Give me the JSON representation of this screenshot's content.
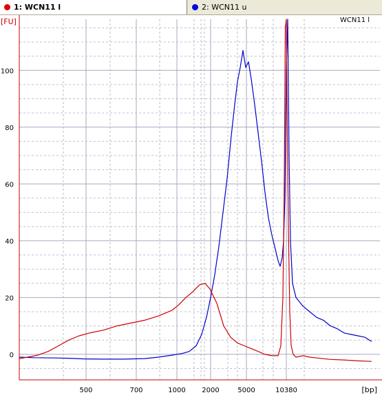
{
  "tabs": [
    {
      "label": "1: WCN11 l",
      "color": "#e00000",
      "active": true
    },
    {
      "label": "2: WCN11 u",
      "color": "#0000e0",
      "active": false
    }
  ],
  "chart_data": {
    "type": "line",
    "title": "WCN11 l",
    "xlabel": "[bp]",
    "ylabel": "[FU]",
    "ylim": [
      -9,
      118
    ],
    "y_ticks": [
      0,
      20,
      40,
      60,
      80,
      100
    ],
    "x_tick_labels": [
      "500",
      "700",
      "1000",
      "2000",
      "5000",
      "10380"
    ],
    "grid": true,
    "series": [
      {
        "name": "WCN11 l",
        "color": "#cc0000",
        "points": [
          [
            28,
            -1.5
          ],
          [
            40,
            -1
          ],
          [
            55,
            -0.3
          ],
          [
            70,
            1
          ],
          [
            85,
            3
          ],
          [
            100,
            5
          ],
          [
            115,
            6.5
          ],
          [
            130,
            7.5
          ],
          [
            150,
            8.5
          ],
          [
            170,
            10
          ],
          [
            190,
            11
          ],
          [
            210,
            12
          ],
          [
            230,
            13.5
          ],
          [
            250,
            15.5
          ],
          [
            260,
            17.5
          ],
          [
            270,
            20
          ],
          [
            280,
            22
          ],
          [
            290,
            24.5
          ],
          [
            298,
            25
          ],
          [
            305,
            23
          ],
          [
            315,
            18
          ],
          [
            325,
            10
          ],
          [
            335,
            6
          ],
          [
            345,
            4
          ],
          [
            355,
            3
          ],
          [
            365,
            2
          ],
          [
            375,
            1
          ],
          [
            385,
            0
          ],
          [
            395,
            -0.5
          ],
          [
            404,
            -0.5
          ],
          [
            408,
            3
          ],
          [
            411,
            20
          ],
          [
            413,
            60
          ],
          [
            414.5,
            115
          ],
          [
            416,
            118
          ],
          [
            417,
            90
          ],
          [
            419,
            45
          ],
          [
            421,
            15
          ],
          [
            423,
            3
          ],
          [
            426,
            0
          ],
          [
            430,
            -1
          ],
          [
            440,
            -0.5
          ],
          [
            450,
            -1
          ],
          [
            460,
            -1.3
          ],
          [
            480,
            -1.8
          ],
          [
            500,
            -2
          ],
          [
            520,
            -2.3
          ],
          [
            540,
            -2.5
          ]
        ]
      },
      {
        "name": "WCN11 u",
        "color": "#0000cc",
        "points": [
          [
            28,
            -1
          ],
          [
            50,
            -1.2
          ],
          [
            80,
            -1.3
          ],
          [
            100,
            -1.4
          ],
          [
            120,
            -1.6
          ],
          [
            150,
            -1.7
          ],
          [
            180,
            -1.7
          ],
          [
            210,
            -1.5
          ],
          [
            230,
            -1
          ],
          [
            250,
            -0.3
          ],
          [
            265,
            0.3
          ],
          [
            275,
            1
          ],
          [
            285,
            3
          ],
          [
            293,
            7
          ],
          [
            300,
            13
          ],
          [
            306,
            20
          ],
          [
            312,
            28
          ],
          [
            318,
            38
          ],
          [
            324,
            50
          ],
          [
            330,
            62
          ],
          [
            336,
            77
          ],
          [
            341,
            88
          ],
          [
            345,
            96
          ],
          [
            349,
            101
          ],
          [
            353,
            107
          ],
          [
            357,
            101
          ],
          [
            361,
            103
          ],
          [
            365,
            97
          ],
          [
            370,
            88
          ],
          [
            375,
            78
          ],
          [
            380,
            68
          ],
          [
            385,
            57
          ],
          [
            390,
            48
          ],
          [
            395,
            42
          ],
          [
            400,
            37
          ],
          [
            404,
            33
          ],
          [
            407,
            31
          ],
          [
            410,
            34
          ],
          [
            412,
            40
          ],
          [
            414,
            55
          ],
          [
            416,
            100
          ],
          [
            418,
            118
          ],
          [
            420,
            70
          ],
          [
            422,
            40
          ],
          [
            425,
            25
          ],
          [
            430,
            20
          ],
          [
            440,
            17
          ],
          [
            450,
            15
          ],
          [
            460,
            13
          ],
          [
            470,
            12
          ],
          [
            480,
            10
          ],
          [
            490,
            9
          ],
          [
            500,
            7.5
          ],
          [
            510,
            7
          ],
          [
            520,
            6.5
          ],
          [
            530,
            6
          ],
          [
            540,
            4.5
          ]
        ]
      }
    ]
  }
}
